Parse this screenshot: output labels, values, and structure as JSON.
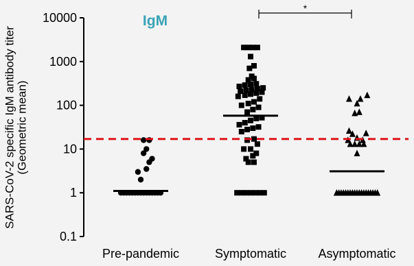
{
  "chart_data": {
    "type": "scatter",
    "title": "IgM",
    "title_color": "#3aa3b6",
    "ylabel": [
      "SARS-CoV-2 specific IgM antibody titer",
      "(Geometric mean)"
    ],
    "yscale": "log",
    "ylim": [
      0.1,
      10000
    ],
    "yticks": [
      {
        "value": 0.1,
        "label": "0.1"
      },
      {
        "value": 1,
        "label": "1"
      },
      {
        "value": 10,
        "label": "10"
      },
      {
        "value": 100,
        "label": "100"
      },
      {
        "value": 1000,
        "label": "1000"
      },
      {
        "value": 10000,
        "label": "10000"
      }
    ],
    "categories": [
      "Pre-pandemic",
      "Symptomatic",
      "Asymptomatic"
    ],
    "cutoff": {
      "value": 17,
      "color": "#e0141b",
      "style": "dashed"
    },
    "significance": {
      "from": "Symptomatic",
      "to": "Asymptomatic",
      "label": "*"
    },
    "series": [
      {
        "category": "Pre-pandemic",
        "marker": "circle",
        "geometric_mean": 1.1,
        "points": [
          {
            "offset": -0.35,
            "value": 1.0
          },
          {
            "offset": -0.3,
            "value": 1.0
          },
          {
            "offset": -0.25,
            "value": 1.0
          },
          {
            "offset": -0.2,
            "value": 1.0
          },
          {
            "offset": -0.15,
            "value": 1.0
          },
          {
            "offset": -0.1,
            "value": 1.0
          },
          {
            "offset": -0.05,
            "value": 1.0
          },
          {
            "offset": 0.0,
            "value": 1.0
          },
          {
            "offset": 0.05,
            "value": 1.0
          },
          {
            "offset": 0.1,
            "value": 1.0
          },
          {
            "offset": 0.15,
            "value": 1.0
          },
          {
            "offset": 0.2,
            "value": 1.0
          },
          {
            "offset": 0.25,
            "value": 1.0
          },
          {
            "offset": 0.3,
            "value": 1.0
          },
          {
            "offset": 0.35,
            "value": 1.0
          },
          {
            "offset": 0.0,
            "value": 2.0
          },
          {
            "offset": -0.05,
            "value": 3.0
          },
          {
            "offset": 0.1,
            "value": 3.5
          },
          {
            "offset": 0.15,
            "value": 5.0
          },
          {
            "offset": 0.2,
            "value": 6.0
          },
          {
            "offset": 0.05,
            "value": 8.0
          },
          {
            "offset": 0.1,
            "value": 10.0
          },
          {
            "offset": 0.05,
            "value": 16.0
          },
          {
            "offset": 0.15,
            "value": 16.0
          }
        ]
      },
      {
        "category": "Symptomatic",
        "marker": "square",
        "geometric_mean": 58,
        "points": [
          {
            "offset": -0.24,
            "value": 1.0
          },
          {
            "offset": -0.16,
            "value": 1.0
          },
          {
            "offset": -0.08,
            "value": 1.0
          },
          {
            "offset": 0.0,
            "value": 1.0
          },
          {
            "offset": 0.08,
            "value": 1.0
          },
          {
            "offset": 0.16,
            "value": 1.0
          },
          {
            "offset": 0.24,
            "value": 1.0
          },
          {
            "offset": -0.04,
            "value": 5.0
          },
          {
            "offset": 0.06,
            "value": 5.0
          },
          {
            "offset": -0.08,
            "value": 6.0
          },
          {
            "offset": 0.04,
            "value": 7.0
          },
          {
            "offset": 0.1,
            "value": 8.0
          },
          {
            "offset": -0.12,
            "value": 10.0
          },
          {
            "offset": 0.0,
            "value": 10.0
          },
          {
            "offset": 0.12,
            "value": 13.0
          },
          {
            "offset": -0.06,
            "value": 16.0
          },
          {
            "offset": 0.06,
            "value": 17.0
          },
          {
            "offset": -0.16,
            "value": 25.0
          },
          {
            "offset": -0.06,
            "value": 28.0
          },
          {
            "offset": 0.04,
            "value": 30.0
          },
          {
            "offset": 0.14,
            "value": 32.0
          },
          {
            "offset": -0.2,
            "value": 36.0
          },
          {
            "offset": -0.1,
            "value": 40.0
          },
          {
            "offset": 0.0,
            "value": 45.0
          },
          {
            "offset": 0.1,
            "value": 50.0
          },
          {
            "offset": 0.2,
            "value": 52.0
          },
          {
            "offset": -0.06,
            "value": 70.0
          },
          {
            "offset": 0.04,
            "value": 80.0
          },
          {
            "offset": 0.14,
            "value": 90.0
          },
          {
            "offset": -0.16,
            "value": 100.0
          },
          {
            "offset": -0.04,
            "value": 110.0
          },
          {
            "offset": 0.06,
            "value": 120.0
          },
          {
            "offset": 0.16,
            "value": 140.0
          },
          {
            "offset": -0.22,
            "value": 160.0
          },
          {
            "offset": -0.1,
            "value": 170.0
          },
          {
            "offset": 0.0,
            "value": 180.0
          },
          {
            "offset": 0.1,
            "value": 190.0
          },
          {
            "offset": 0.2,
            "value": 200.0
          },
          {
            "offset": -0.18,
            "value": 210.0
          },
          {
            "offset": -0.08,
            "value": 220.0
          },
          {
            "offset": 0.02,
            "value": 230.0
          },
          {
            "offset": 0.12,
            "value": 240.0
          },
          {
            "offset": 0.22,
            "value": 250.0
          },
          {
            "offset": -0.2,
            "value": 270.0
          },
          {
            "offset": -0.1,
            "value": 290.0
          },
          {
            "offset": 0.0,
            "value": 300.0
          },
          {
            "offset": 0.1,
            "value": 310.0
          },
          {
            "offset": -0.04,
            "value": 380.0
          },
          {
            "offset": 0.06,
            "value": 410.0
          },
          {
            "offset": 0.02,
            "value": 460.0
          },
          {
            "offset": -0.02,
            "value": 700.0
          },
          {
            "offset": 0.06,
            "value": 800.0
          },
          {
            "offset": 0.0,
            "value": 1300.0
          },
          {
            "offset": -0.12,
            "value": 2100.0
          },
          {
            "offset": -0.04,
            "value": 2100.0
          },
          {
            "offset": 0.04,
            "value": 2100.0
          },
          {
            "offset": 0.12,
            "value": 2100.0
          }
        ]
      },
      {
        "category": "Asymptomatic",
        "marker": "triangle",
        "geometric_mean": 3.1,
        "points": [
          {
            "offset": -0.36,
            "value": 1.0
          },
          {
            "offset": -0.32,
            "value": 1.0
          },
          {
            "offset": -0.28,
            "value": 1.0
          },
          {
            "offset": -0.24,
            "value": 1.0
          },
          {
            "offset": -0.2,
            "value": 1.0
          },
          {
            "offset": -0.16,
            "value": 1.0
          },
          {
            "offset": -0.12,
            "value": 1.0
          },
          {
            "offset": -0.08,
            "value": 1.0
          },
          {
            "offset": -0.04,
            "value": 1.0
          },
          {
            "offset": 0.0,
            "value": 1.0
          },
          {
            "offset": 0.04,
            "value": 1.0
          },
          {
            "offset": 0.08,
            "value": 1.0
          },
          {
            "offset": 0.12,
            "value": 1.0
          },
          {
            "offset": 0.16,
            "value": 1.0
          },
          {
            "offset": 0.2,
            "value": 1.0
          },
          {
            "offset": 0.24,
            "value": 1.0
          },
          {
            "offset": 0.28,
            "value": 1.0
          },
          {
            "offset": 0.32,
            "value": 1.0
          },
          {
            "offset": 0.36,
            "value": 1.0
          },
          {
            "offset": 0.0,
            "value": 8.0
          },
          {
            "offset": -0.12,
            "value": 13.0
          },
          {
            "offset": -0.04,
            "value": 13.0
          },
          {
            "offset": 0.04,
            "value": 13.0
          },
          {
            "offset": 0.12,
            "value": 13.0
          },
          {
            "offset": -0.16,
            "value": 16.0
          },
          {
            "offset": 0.1,
            "value": 16.0
          },
          {
            "offset": 0.0,
            "value": 18.0
          },
          {
            "offset": -0.08,
            "value": 22.0
          },
          {
            "offset": 0.16,
            "value": 23.0
          },
          {
            "offset": -0.14,
            "value": 26.0
          },
          {
            "offset": -0.04,
            "value": 66.0
          },
          {
            "offset": 0.04,
            "value": 70.0
          },
          {
            "offset": 0.0,
            "value": 110.0
          },
          {
            "offset": -0.14,
            "value": 140.0
          },
          {
            "offset": 0.06,
            "value": 140.0
          },
          {
            "offset": 0.18,
            "value": 170.0
          }
        ]
      }
    ]
  }
}
